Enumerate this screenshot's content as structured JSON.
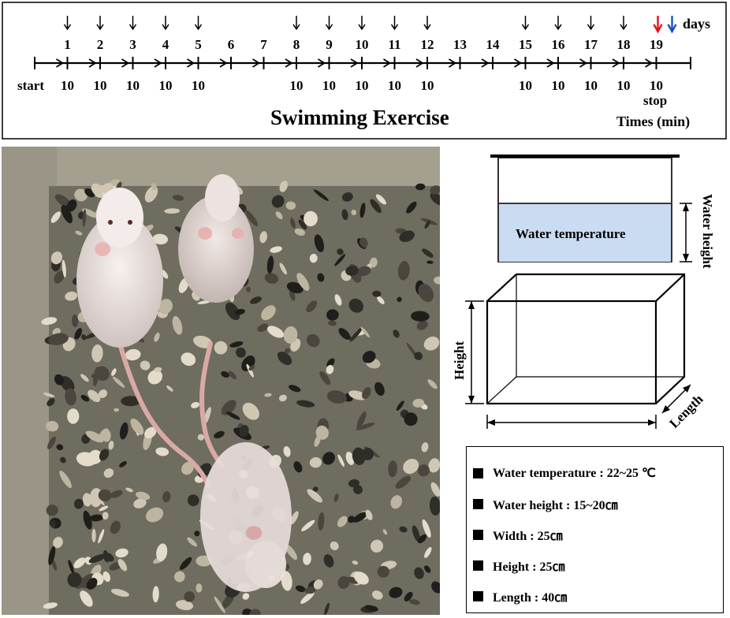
{
  "timeline": {
    "days_label": "days",
    "start_label": "start",
    "stop_label": "stop",
    "title": "Swimming Exercise",
    "unit_label": "Times (min)",
    "days": [
      "1",
      "2",
      "3",
      "4",
      "5",
      "6",
      "7",
      "8",
      "9",
      "10",
      "11",
      "12",
      "13",
      "14",
      "15",
      "16",
      "17",
      "18",
      "19"
    ],
    "exercise_days": [
      "1",
      "2",
      "3",
      "4",
      "5",
      "8",
      "9",
      "10",
      "11",
      "12",
      "15",
      "16",
      "17",
      "18",
      "19"
    ],
    "minutes": "10",
    "marker_colors": {
      "down_arrow": "#000000",
      "red_arrow": "#e0141e",
      "blue_arrow": "#1f4fbf"
    }
  },
  "photo": {
    "subject": "three white mice on a speckled terrazzo surface"
  },
  "tank": {
    "water_label": "Water temperature",
    "water_height_label": "Water height",
    "height_label": "Height",
    "length_label": "Length",
    "water_color": "#c9dcf2"
  },
  "specs": [
    {
      "label": "Water temperature : 22~25 ℃"
    },
    {
      "label": "Water height : 15~20㎝"
    },
    {
      "label": "Width : 25㎝"
    },
    {
      "label": "Height : 25㎝"
    },
    {
      "label": "Length : 40㎝"
    }
  ]
}
